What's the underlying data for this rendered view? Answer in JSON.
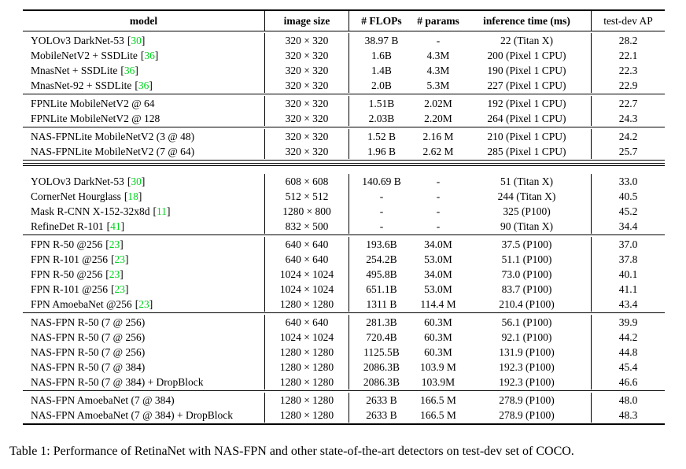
{
  "table": {
    "headers": {
      "model": "model",
      "image_size": "image size",
      "flops": "# FLOPs",
      "params": "# params",
      "inference_time": "inference time (ms)",
      "test_dev_ap": "test-dev AP"
    },
    "sections": [
      {
        "rule_after": "single",
        "rows": [
          {
            "model": "YOLOv3 DarkNet-53",
            "cite": "30",
            "size": "320 × 320",
            "flops": "38.97 B",
            "params": "-",
            "time": "22 (Titan X)",
            "ap": "28.2"
          },
          {
            "model": "MobileNetV2 + SSDLite",
            "cite": "36",
            "size": "320 × 320",
            "flops": "1.6B",
            "params": "4.3M",
            "time": "200 (Pixel 1 CPU)",
            "ap": "22.1"
          },
          {
            "model": "MnasNet + SSDLite",
            "cite": "36",
            "size": "320 × 320",
            "flops": "1.4B",
            "params": "4.3M",
            "time": "190 (Pixel 1 CPU)",
            "ap": "22.3"
          },
          {
            "model": "MnasNet-92 + SSDLite",
            "cite": "36",
            "size": "320 × 320",
            "flops": "2.0B",
            "params": "5.3M",
            "time": "227 (Pixel 1 CPU)",
            "ap": "22.9"
          }
        ]
      },
      {
        "rule_after": "single",
        "rows": [
          {
            "model": "FPNLite MobileNetV2  @ 64",
            "size": "320 × 320",
            "flops": "1.51B",
            "params": "2.02M",
            "time": "192 (Pixel 1 CPU)",
            "ap": "22.7"
          },
          {
            "model": "FPNLite MobileNetV2  @ 128",
            "size": "320 × 320",
            "flops": "2.03B",
            "params": "2.20M",
            "time": "264 (Pixel 1 CPU)",
            "ap": "24.3"
          }
        ]
      },
      {
        "rule_after": "double",
        "rows": [
          {
            "model": "NAS-FPNLite MobileNetV2 (3 @ 48)",
            "size": "320 × 320",
            "flops": "1.52 B",
            "params": "2.16 M",
            "time": "210 (Pixel 1 CPU)",
            "ap": "24.2"
          },
          {
            "model": "NAS-FPNLite MobileNetV2 (7 @ 64)",
            "size": "320 × 320",
            "flops": "1.96 B",
            "params": "2.62 M",
            "time": "285 (Pixel 1 CPU)",
            "ap": "25.7"
          }
        ]
      },
      {
        "rule_after": "single",
        "rows": [
          {
            "model": "YOLOv3 DarkNet-53",
            "cite": "30",
            "size": "608 × 608",
            "flops": "140.69 B",
            "params": "-",
            "time": "51 (Titan X)",
            "ap": "33.0"
          },
          {
            "model": "CornerNet Hourglass",
            "cite": "18",
            "size": "512 × 512",
            "flops": "-",
            "params": "-",
            "time": "244 (Titan X)",
            "ap": "40.5"
          },
          {
            "model": "Mask R-CNN X-152-32x8d",
            "cite": "11",
            "size": "1280 × 800",
            "flops": "-",
            "params": "-",
            "time": "325 (P100)",
            "ap": "45.2"
          },
          {
            "model": "RefineDet R-101",
            "cite": "41",
            "size": "832 × 500",
            "flops": "-",
            "params": "-",
            "time": "90 (Titan X)",
            "ap": "34.4"
          }
        ]
      },
      {
        "rule_after": "single",
        "rows": [
          {
            "model": "FPN R-50 @256",
            "cite": "23",
            "size": "640 × 640",
            "flops": "193.6B",
            "params": "34.0M",
            "time": "37.5 (P100)",
            "ap": "37.0"
          },
          {
            "model": "FPN R-101 @256",
            "cite": "23",
            "size": "640 × 640",
            "flops": "254.2B",
            "params": "53.0M",
            "time": "51.1 (P100)",
            "ap": "37.8"
          },
          {
            "model": "FPN R-50 @256",
            "cite": "23",
            "size": "1024 × 1024",
            "flops": "495.8B",
            "params": "34.0M",
            "time": "73.0 (P100)",
            "ap": "40.1"
          },
          {
            "model": "FPN R-101 @256",
            "cite": "23",
            "size": "1024 × 1024",
            "flops": "651.1B",
            "params": "53.0M",
            "time": "83.7 (P100)",
            "ap": "41.1"
          },
          {
            "model": "FPN AmoebaNet @256",
            "cite": "23",
            "size": "1280 × 1280",
            "flops": "1311 B",
            "params": "114.4 M",
            "time": "210.4 (P100)",
            "ap": "43.4"
          }
        ]
      },
      {
        "rule_after": "single",
        "rows": [
          {
            "model": "NAS-FPN R-50 (7 @ 256)",
            "size": "640 × 640",
            "flops": "281.3B",
            "params": "60.3M",
            "time": "56.1 (P100)",
            "ap": "39.9"
          },
          {
            "model": "NAS-FPN R-50 (7 @ 256)",
            "size": "1024 × 1024",
            "flops": "720.4B",
            "params": "60.3M",
            "time": "92.1 (P100)",
            "ap": "44.2"
          },
          {
            "model": "NAS-FPN R-50 (7 @ 256)",
            "size": "1280 × 1280",
            "flops": "1125.5B",
            "params": "60.3M",
            "time": "131.9 (P100)",
            "ap": "44.8"
          },
          {
            "model": "NAS-FPN R-50 (7 @ 384)",
            "size": "1280 × 1280",
            "flops": "2086.3B",
            "params": "103.9 M",
            "time": "192.3 (P100)",
            "ap": "45.4"
          },
          {
            "model": "NAS-FPN R-50 (7 @ 384) + DropBlock",
            "size": "1280 × 1280",
            "flops": "2086.3B",
            "params": "103.9M",
            "time": "192.3 (P100)",
            "ap": "46.6"
          }
        ]
      },
      {
        "rule_after": "bottom",
        "rows": [
          {
            "model": "NAS-FPN AmoebaNet (7 @ 384)",
            "size": "1280 × 1280",
            "flops": "2633 B",
            "params": "166.5 M",
            "time": "278.9 (P100)",
            "ap": "48.0"
          },
          {
            "model": "NAS-FPN AmoebaNet (7 @ 384) + DropBlock",
            "size": "1280 × 1280",
            "flops": "2633 B",
            "params": "166.5 M",
            "time": "278.9 (P100)",
            "ap": "48.3"
          }
        ]
      }
    ]
  },
  "punct": {
    "open_bracket": "[",
    "close_bracket": "]"
  },
  "caption": "Table 1: Performance of RetinaNet with NAS-FPN and other state-of-the-art detectors on test-dev set of COCO.",
  "colors": {
    "cite_green": "#00d41e"
  }
}
